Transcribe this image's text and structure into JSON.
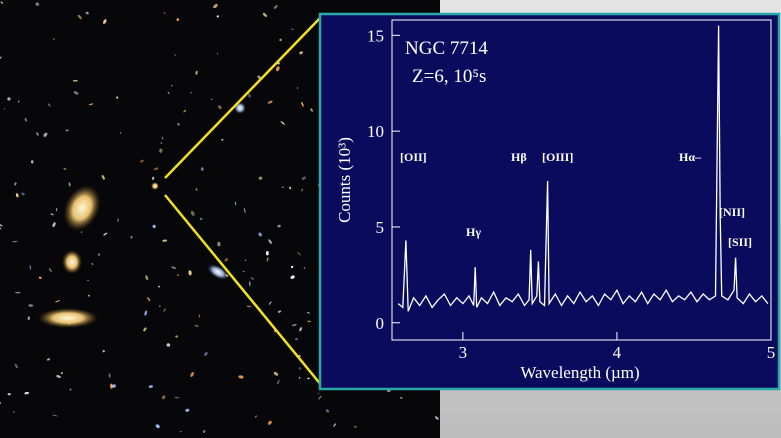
{
  "chart_data": {
    "type": "line",
    "title": "NGC 7714",
    "subtitle": "Z=6, 10⁵s",
    "x_label": "Wavelength (µm)",
    "y_label": "Counts (10³)",
    "annotations": [
      "[OII]",
      "Hγ",
      "Hβ",
      "[OIII]",
      "Hα–",
      "[NII]",
      "[SII]"
    ],
    "color": "#ffffff",
    "xlim": [
      2.54,
      5
    ],
    "xticks": [
      3,
      4,
      5
    ],
    "ylim": [
      -0.9,
      15.8
    ],
    "yticks": [
      0,
      5,
      10,
      15
    ],
    "x": [
      2.58,
      2.61,
      2.63,
      2.645,
      2.68,
      2.72,
      2.76,
      2.8,
      2.84,
      2.88,
      2.92,
      2.96,
      3.0,
      3.04,
      3.07,
      3.08,
      3.09,
      3.12,
      3.16,
      3.2,
      3.24,
      3.28,
      3.32,
      3.36,
      3.4,
      3.43,
      3.44,
      3.45,
      3.48,
      3.49,
      3.5,
      3.53,
      3.55,
      3.56,
      3.6,
      3.64,
      3.68,
      3.72,
      3.76,
      3.8,
      3.84,
      3.88,
      3.92,
      3.96,
      4.0,
      4.04,
      4.08,
      4.12,
      4.16,
      4.2,
      4.24,
      4.28,
      4.32,
      4.36,
      4.4,
      4.44,
      4.48,
      4.52,
      4.56,
      4.6,
      4.64,
      4.66,
      4.67,
      4.68,
      4.72,
      4.76,
      4.77,
      4.78,
      4.82,
      4.86,
      4.9,
      4.94,
      4.98
    ],
    "values": [
      1.0,
      0.8,
      4.3,
      0.6,
      1.3,
      0.9,
      1.4,
      0.8,
      1.2,
      1.5,
      0.9,
      1.3,
      1.0,
      1.4,
      0.9,
      2.9,
      0.8,
      1.3,
      1.0,
      1.6,
      0.9,
      1.3,
      1.1,
      1.5,
      0.9,
      1.2,
      3.8,
      1.0,
      1.4,
      3.2,
      1.1,
      0.9,
      7.4,
      1.0,
      1.5,
      0.9,
      1.4,
      1.0,
      1.6,
      1.1,
      1.4,
      0.9,
      1.5,
      1.2,
      1.7,
      1.0,
      1.4,
      1.1,
      1.6,
      1.0,
      1.5,
      1.2,
      1.7,
      1.1,
      1.4,
      1.2,
      1.6,
      1.1,
      1.5,
      1.2,
      1.4,
      15.5,
      5.6,
      1.4,
      1.2,
      1.7,
      3.4,
      1.3,
      1.0,
      1.5,
      1.1,
      1.4,
      1.0
    ]
  }
}
